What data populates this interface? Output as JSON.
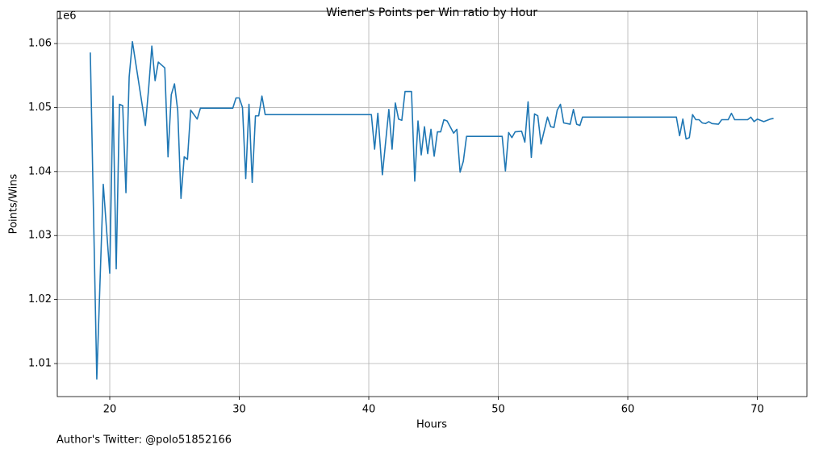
{
  "chart_data": {
    "type": "line",
    "title": "Wiener's Points per Win ratio by Hour",
    "xlabel": "Hours",
    "ylabel": "Points/Wins",
    "y_offset_label": "1e6",
    "footnote": "Author's Twitter: @polo51852166",
    "xlim": [
      15.95,
      73.83
    ],
    "ylim": [
      1.00484,
      1.06504
    ],
    "xticks": [
      20,
      30,
      40,
      50,
      60,
      70
    ],
    "yticks": [
      1.01,
      1.02,
      1.03,
      1.04,
      1.05,
      1.06
    ],
    "grid": true,
    "series": [
      {
        "name": "Points/Wins",
        "color": "#1f77b4",
        "x": [
          18.5,
          19.0,
          19.5,
          20.0,
          20.25,
          20.5,
          20.75,
          21.0,
          21.25,
          21.5,
          21.75,
          22.75,
          23.0,
          23.25,
          23.5,
          23.75,
          24.25,
          24.5,
          24.75,
          25.0,
          25.25,
          25.5,
          25.75,
          26.0,
          26.25,
          26.75,
          27.0,
          29.5,
          29.75,
          30.0,
          30.25,
          30.5,
          30.75,
          31.0,
          31.25,
          31.5,
          31.75,
          32.0,
          40.2,
          40.45,
          40.7,
          41.05,
          41.55,
          41.8,
          42.05,
          42.3,
          42.55,
          42.8,
          43.3,
          43.55,
          43.8,
          44.05,
          44.3,
          44.55,
          44.8,
          45.05,
          45.3,
          45.55,
          45.8,
          46.05,
          46.55,
          46.8,
          47.05,
          47.3,
          47.55,
          50.3,
          50.55,
          50.8,
          51.05,
          51.3,
          51.8,
          52.05,
          52.3,
          52.55,
          52.8,
          53.05,
          53.3,
          53.8,
          54.05,
          54.3,
          54.55,
          54.8,
          55.05,
          55.55,
          55.8,
          56.05,
          56.3,
          56.5,
          63.75,
          64.0,
          64.25,
          64.5,
          64.75,
          65.0,
          65.25,
          65.5,
          65.75,
          66.0,
          66.25,
          66.5,
          67.0,
          67.25,
          67.75,
          68.0,
          68.25,
          69.25,
          69.5,
          69.75,
          70.0,
          70.5,
          71.0,
          71.25
        ],
        "values": [
          1.0586,
          1.0076,
          1.038,
          1.0241,
          1.0518,
          1.0248,
          1.0505,
          1.0503,
          1.0367,
          1.0548,
          1.0603,
          1.0472,
          1.0529,
          1.0596,
          1.0542,
          1.0571,
          1.0562,
          1.0423,
          1.052,
          1.0537,
          1.0495,
          1.0358,
          1.0423,
          1.0419,
          1.0496,
          1.0482,
          1.0499,
          1.0499,
          1.0515,
          1.0515,
          1.05,
          1.0389,
          1.0505,
          1.0383,
          1.0487,
          1.0487,
          1.0518,
          1.0489,
          1.0489,
          1.0435,
          1.0491,
          1.0395,
          1.0497,
          1.0435,
          1.0507,
          1.0482,
          1.048,
          1.0525,
          1.0525,
          1.0385,
          1.0479,
          1.0426,
          1.047,
          1.0428,
          1.0466,
          1.0424,
          1.0462,
          1.0462,
          1.0481,
          1.0479,
          1.046,
          1.0466,
          1.0399,
          1.0416,
          1.0455,
          1.0455,
          1.0401,
          1.0461,
          1.0453,
          1.0462,
          1.0463,
          1.0446,
          1.0509,
          1.0422,
          1.049,
          1.0487,
          1.0443,
          1.0485,
          1.047,
          1.0469,
          1.0496,
          1.0505,
          1.0476,
          1.0474,
          1.0497,
          1.0474,
          1.0472,
          1.0485,
          1.0485,
          1.0456,
          1.0482,
          1.0451,
          1.0453,
          1.0489,
          1.0481,
          1.0481,
          1.0476,
          1.0475,
          1.0478,
          1.0475,
          1.0474,
          1.0481,
          1.0481,
          1.0491,
          1.0481,
          1.0481,
          1.0485,
          1.0478,
          1.0482,
          1.0478,
          1.0482,
          1.0483
        ]
      }
    ]
  }
}
